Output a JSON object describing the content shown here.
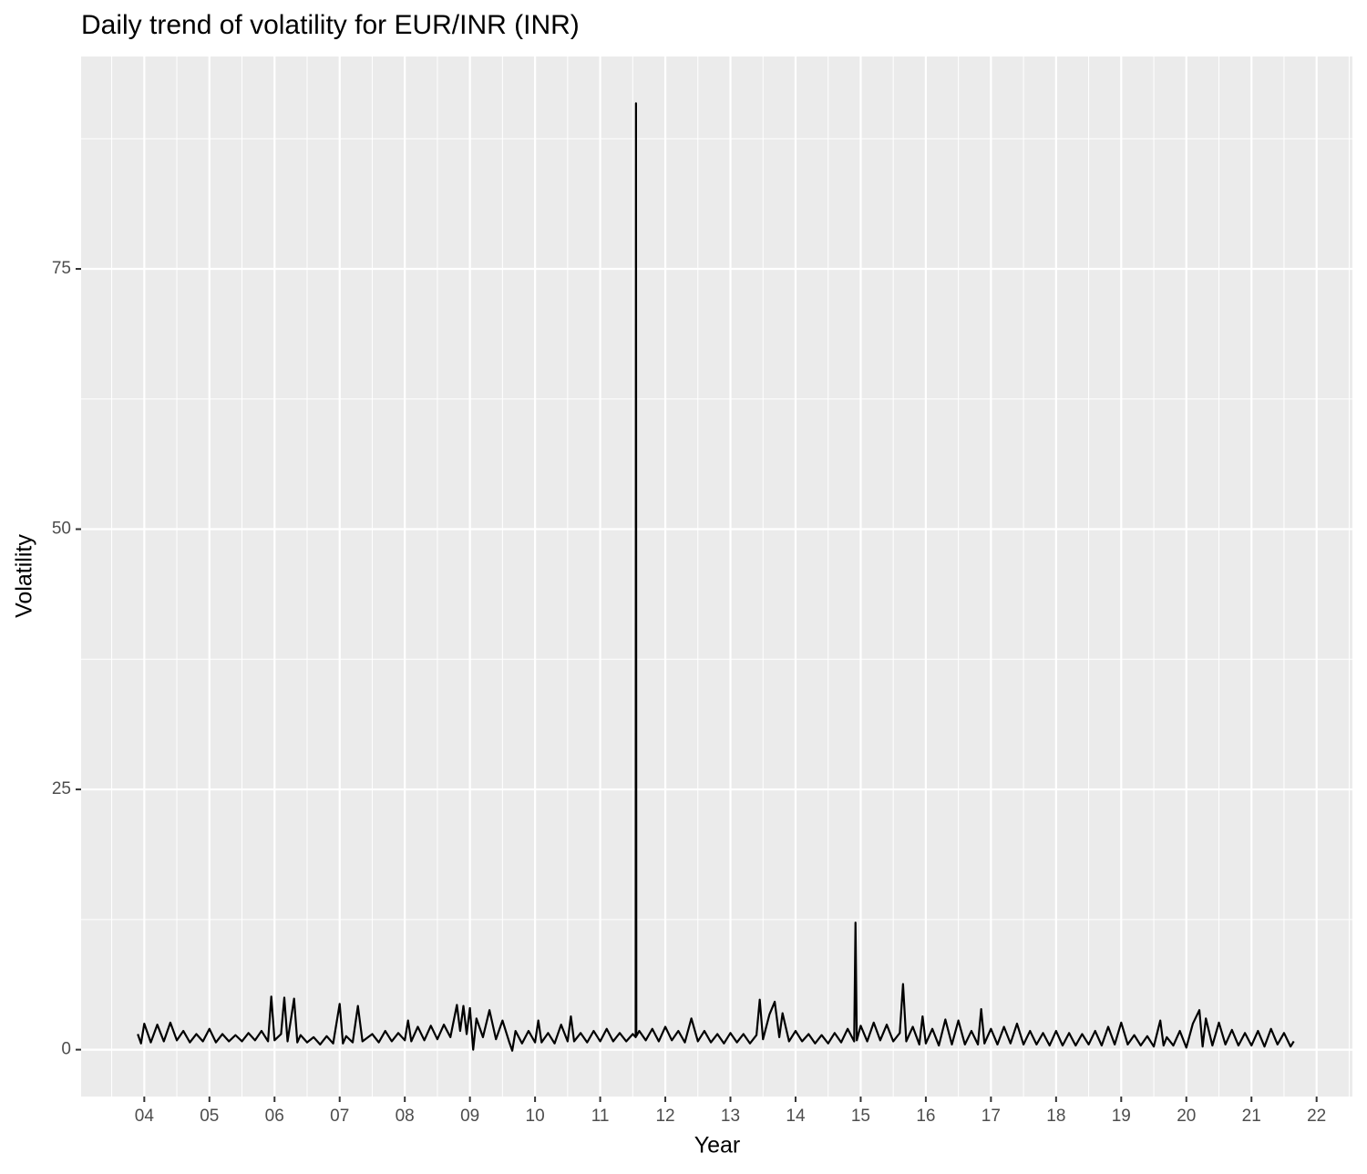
{
  "chart_data": {
    "type": "line",
    "title": "Daily trend of volatility for EUR/INR (INR)",
    "x_label": "Year",
    "y_label": "Volatility",
    "xlim": [
      2003.03,
      2022.55
    ],
    "ylim": [
      -4.5,
      95.4
    ],
    "xticks": [
      {
        "value": 2004,
        "label": "04"
      },
      {
        "value": 2005,
        "label": "05"
      },
      {
        "value": 2006,
        "label": "06"
      },
      {
        "value": 2007,
        "label": "07"
      },
      {
        "value": 2008,
        "label": "08"
      },
      {
        "value": 2009,
        "label": "09"
      },
      {
        "value": 2010,
        "label": "10"
      },
      {
        "value": 2011,
        "label": "11"
      },
      {
        "value": 2012,
        "label": "12"
      },
      {
        "value": 2013,
        "label": "13"
      },
      {
        "value": 2014,
        "label": "14"
      },
      {
        "value": 2015,
        "label": "15"
      },
      {
        "value": 2016,
        "label": "16"
      },
      {
        "value": 2017,
        "label": "17"
      },
      {
        "value": 2018,
        "label": "18"
      },
      {
        "value": 2019,
        "label": "19"
      },
      {
        "value": 2020,
        "label": "20"
      },
      {
        "value": 2021,
        "label": "21"
      },
      {
        "value": 2022,
        "label": "22"
      }
    ],
    "yticks": [
      0,
      25,
      50,
      75
    ],
    "grid": true,
    "series": [
      {
        "color": "#000000",
        "x": [
          2003.9,
          2003.95,
          2004.0,
          2004.1,
          2004.2,
          2004.3,
          2004.4,
          2004.5,
          2004.6,
          2004.7,
          2004.8,
          2004.9,
          2005.0,
          2005.1,
          2005.2,
          2005.3,
          2005.4,
          2005.5,
          2005.6,
          2005.7,
          2005.8,
          2005.9,
          2005.95,
          2006.0,
          2006.1,
          2006.15,
          2006.2,
          2006.3,
          2006.35,
          2006.4,
          2006.5,
          2006.6,
          2006.7,
          2006.8,
          2006.9,
          2007.0,
          2007.05,
          2007.1,
          2007.2,
          2007.28,
          2007.35,
          2007.5,
          2007.6,
          2007.7,
          2007.8,
          2007.9,
          2008.0,
          2008.05,
          2008.1,
          2008.2,
          2008.3,
          2008.4,
          2008.5,
          2008.6,
          2008.7,
          2008.8,
          2008.85,
          2008.9,
          2008.95,
          2009.0,
          2009.05,
          2009.1,
          2009.2,
          2009.3,
          2009.4,
          2009.5,
          2009.6,
          2009.65,
          2009.7,
          2009.8,
          2009.9,
          2010.0,
          2010.05,
          2010.1,
          2010.2,
          2010.3,
          2010.4,
          2010.5,
          2010.55,
          2010.6,
          2010.7,
          2010.8,
          2010.9,
          2011.0,
          2011.1,
          2011.2,
          2011.3,
          2011.4,
          2011.5,
          2011.545,
          2011.55,
          2011.555,
          2011.6,
          2011.7,
          2011.8,
          2011.9,
          2012.0,
          2012.1,
          2012.2,
          2012.3,
          2012.4,
          2012.5,
          2012.6,
          2012.7,
          2012.8,
          2012.9,
          2013.0,
          2013.1,
          2013.2,
          2013.3,
          2013.4,
          2013.45,
          2013.5,
          2013.6,
          2013.68,
          2013.75,
          2013.8,
          2013.9,
          2014.0,
          2014.1,
          2014.2,
          2014.3,
          2014.4,
          2014.5,
          2014.6,
          2014.7,
          2014.8,
          2014.9,
          2014.92,
          2014.94,
          2015.0,
          2015.1,
          2015.2,
          2015.3,
          2015.4,
          2015.5,
          2015.6,
          2015.65,
          2015.7,
          2015.8,
          2015.9,
          2015.95,
          2016.0,
          2016.1,
          2016.2,
          2016.3,
          2016.4,
          2016.5,
          2016.6,
          2016.7,
          2016.8,
          2016.85,
          2016.9,
          2017.0,
          2017.1,
          2017.2,
          2017.3,
          2017.4,
          2017.5,
          2017.6,
          2017.7,
          2017.8,
          2017.9,
          2018.0,
          2018.1,
          2018.2,
          2018.3,
          2018.4,
          2018.5,
          2018.6,
          2018.7,
          2018.8,
          2018.9,
          2019.0,
          2019.1,
          2019.2,
          2019.3,
          2019.4,
          2019.5,
          2019.6,
          2019.65,
          2019.7,
          2019.8,
          2019.9,
          2020.0,
          2020.1,
          2020.2,
          2020.25,
          2020.3,
          2020.4,
          2020.5,
          2020.6,
          2020.7,
          2020.8,
          2020.9,
          2021.0,
          2021.1,
          2021.2,
          2021.3,
          2021.4,
          2021.5,
          2021.6,
          2021.65
        ],
        "values": [
          1.5,
          0.6,
          2.5,
          0.7,
          2.4,
          0.8,
          2.6,
          0.9,
          1.8,
          0.7,
          1.5,
          0.8,
          2.0,
          0.7,
          1.5,
          0.8,
          1.4,
          0.8,
          1.6,
          0.9,
          1.8,
          0.8,
          5.1,
          0.9,
          1.5,
          5.0,
          0.8,
          4.9,
          0.7,
          1.4,
          0.7,
          1.2,
          0.5,
          1.3,
          0.6,
          4.4,
          0.6,
          1.3,
          0.7,
          4.2,
          0.8,
          1.5,
          0.7,
          1.8,
          0.8,
          1.6,
          0.9,
          2.8,
          0.8,
          2.2,
          0.9,
          2.3,
          1.0,
          2.4,
          1.2,
          4.3,
          1.8,
          4.2,
          1.5,
          4.0,
          0.0,
          3.0,
          1.2,
          3.8,
          1.0,
          2.8,
          0.8,
          -0.1,
          1.8,
          0.6,
          1.8,
          0.7,
          2.8,
          0.7,
          1.6,
          0.6,
          2.4,
          0.8,
          3.2,
          0.8,
          1.6,
          0.7,
          1.8,
          0.8,
          2.0,
          0.8,
          1.6,
          0.8,
          1.5,
          1.2,
          90.9,
          1.3,
          1.8,
          0.9,
          2.0,
          0.8,
          2.2,
          0.9,
          1.8,
          0.7,
          3.0,
          0.8,
          1.8,
          0.7,
          1.5,
          0.6,
          1.6,
          0.7,
          1.5,
          0.6,
          1.4,
          4.8,
          1.0,
          3.4,
          4.6,
          1.2,
          3.5,
          0.8,
          1.8,
          0.8,
          1.5,
          0.6,
          1.4,
          0.6,
          1.6,
          0.7,
          2.0,
          0.8,
          12.2,
          0.9,
          2.3,
          0.8,
          2.6,
          0.9,
          2.4,
          0.8,
          1.6,
          6.3,
          0.8,
          2.2,
          0.5,
          3.2,
          0.6,
          2.0,
          0.4,
          2.9,
          0.5,
          2.8,
          0.5,
          1.8,
          0.5,
          3.9,
          0.6,
          2.0,
          0.5,
          2.2,
          0.6,
          2.5,
          0.5,
          1.8,
          0.5,
          1.6,
          0.4,
          1.8,
          0.4,
          1.6,
          0.4,
          1.5,
          0.5,
          1.8,
          0.4,
          2.2,
          0.5,
          2.6,
          0.5,
          1.4,
          0.4,
          1.3,
          0.3,
          2.8,
          0.4,
          1.2,
          0.4,
          1.8,
          0.2,
          2.5,
          3.8,
          0.3,
          3.0,
          0.4,
          2.6,
          0.5,
          1.9,
          0.4,
          1.6,
          0.4,
          1.8,
          0.3,
          2.0,
          0.5,
          1.6,
          0.3,
          0.8
        ]
      }
    ]
  }
}
